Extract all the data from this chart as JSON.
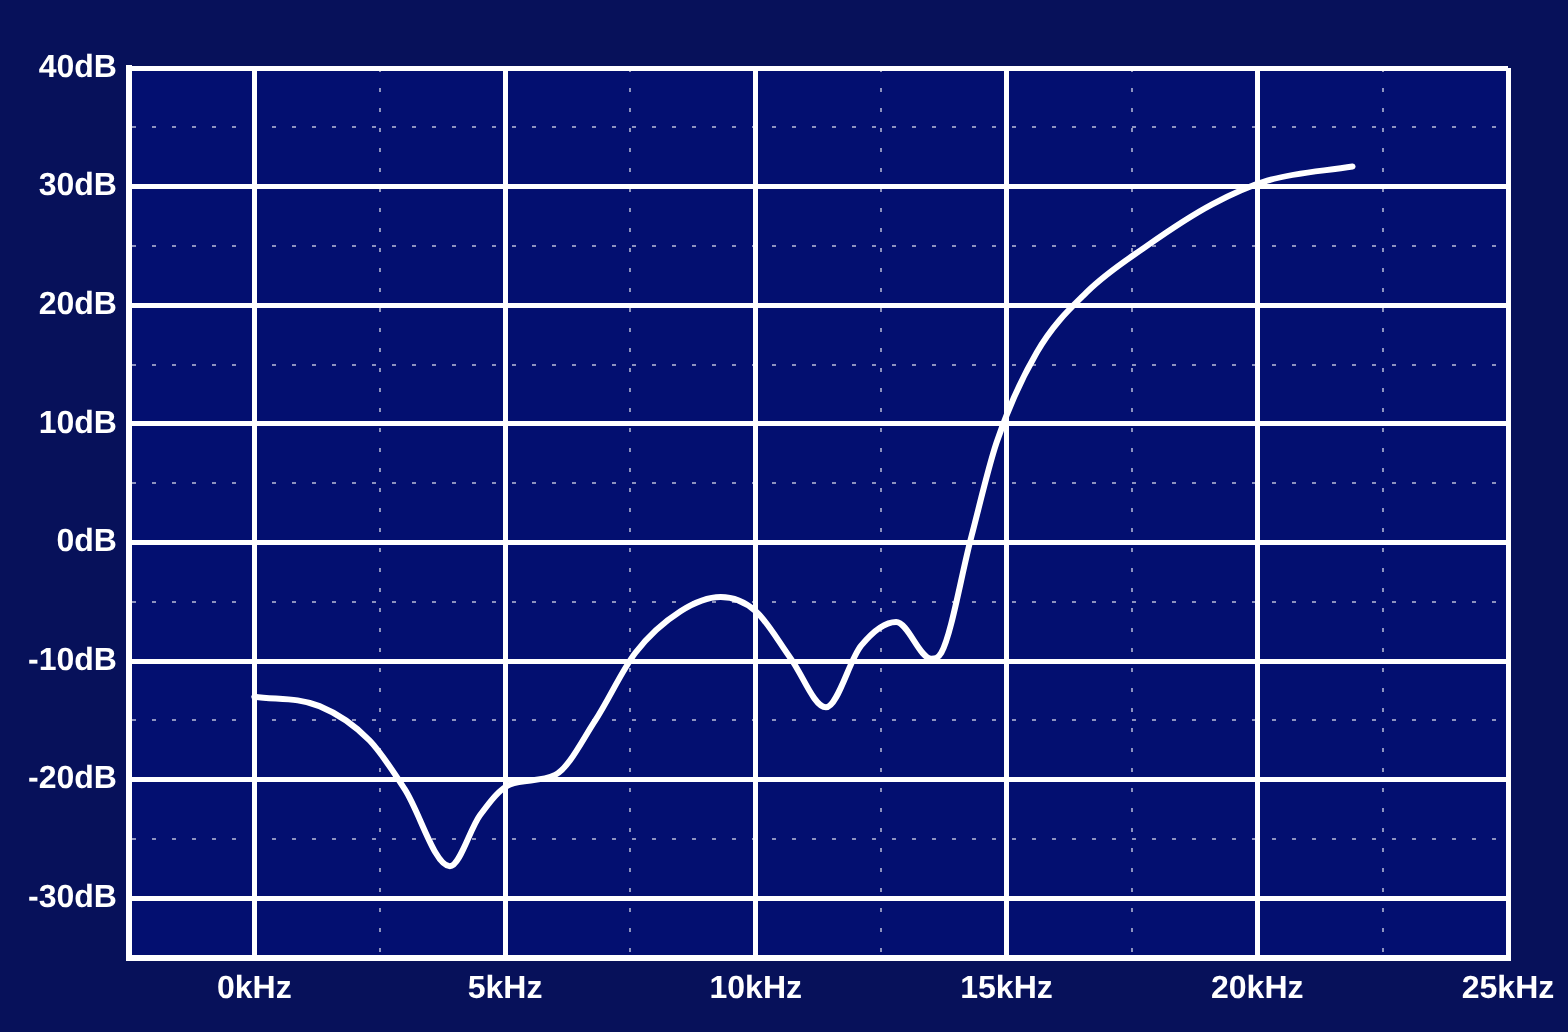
{
  "chart_data": {
    "type": "line",
    "x": [
      0,
      1.3,
      2.3,
      3.0,
      3.9,
      4.5,
      5.1,
      6.0,
      6.8,
      7.6,
      8.5,
      9.3,
      10.0,
      10.7,
      11.4,
      12.1,
      12.8,
      13.5,
      13.7,
      14.3,
      14.8,
      15.6,
      16.6,
      17.8,
      19.1,
      20.2,
      21.9
    ],
    "series": [
      {
        "color": "#ffffff",
        "values": [
          -13.0,
          -13.8,
          -16.7,
          -20.8,
          -27.3,
          -23,
          -20.4,
          -19.6,
          -15,
          -9.3,
          -5.8,
          -4.6,
          -5.8,
          -9.8,
          -13.9,
          -8.7,
          -6.7,
          -9.8,
          -9.3,
          0.5,
          8.4,
          16,
          21.1,
          25,
          28.5,
          30.5,
          31.7
        ]
      }
    ],
    "xlim": [
      -2.5,
      25
    ],
    "xticks": [
      {
        "value": 0,
        "label": "0kHz"
      },
      {
        "value": 2.5,
        "label": null
      },
      {
        "value": 5,
        "label": "5kHz"
      },
      {
        "value": 7.5,
        "label": null
      },
      {
        "value": 10,
        "label": "10kHz"
      },
      {
        "value": 12.5,
        "label": null
      },
      {
        "value": 15,
        "label": "15kHz"
      },
      {
        "value": 17.5,
        "label": null
      },
      {
        "value": 20,
        "label": "20kHz"
      },
      {
        "value": 22.5,
        "label": null
      },
      {
        "value": 25,
        "label": "25kHz"
      }
    ],
    "ylim": [
      -35,
      40
    ],
    "yticks": [
      {
        "value": -30,
        "label": "-30dB"
      },
      {
        "value": -25,
        "label": null
      },
      {
        "value": -20,
        "label": "-20dB"
      },
      {
        "value": -15,
        "label": null
      },
      {
        "value": -10,
        "label": "-10dB"
      },
      {
        "value": -5,
        "label": null
      },
      {
        "value": 0,
        "label": "0dB"
      },
      {
        "value": 5,
        "label": null
      },
      {
        "value": 10,
        "label": "10dB"
      },
      {
        "value": 15,
        "label": null
      },
      {
        "value": 20,
        "label": "20dB"
      },
      {
        "value": 25,
        "label": null
      },
      {
        "value": 30,
        "label": "30dB"
      },
      {
        "value": 35,
        "label": null
      },
      {
        "value": 40,
        "label": "40dB"
      }
    ],
    "grid": true,
    "marker": "none",
    "line_style": "solid",
    "legend": false
  }
}
